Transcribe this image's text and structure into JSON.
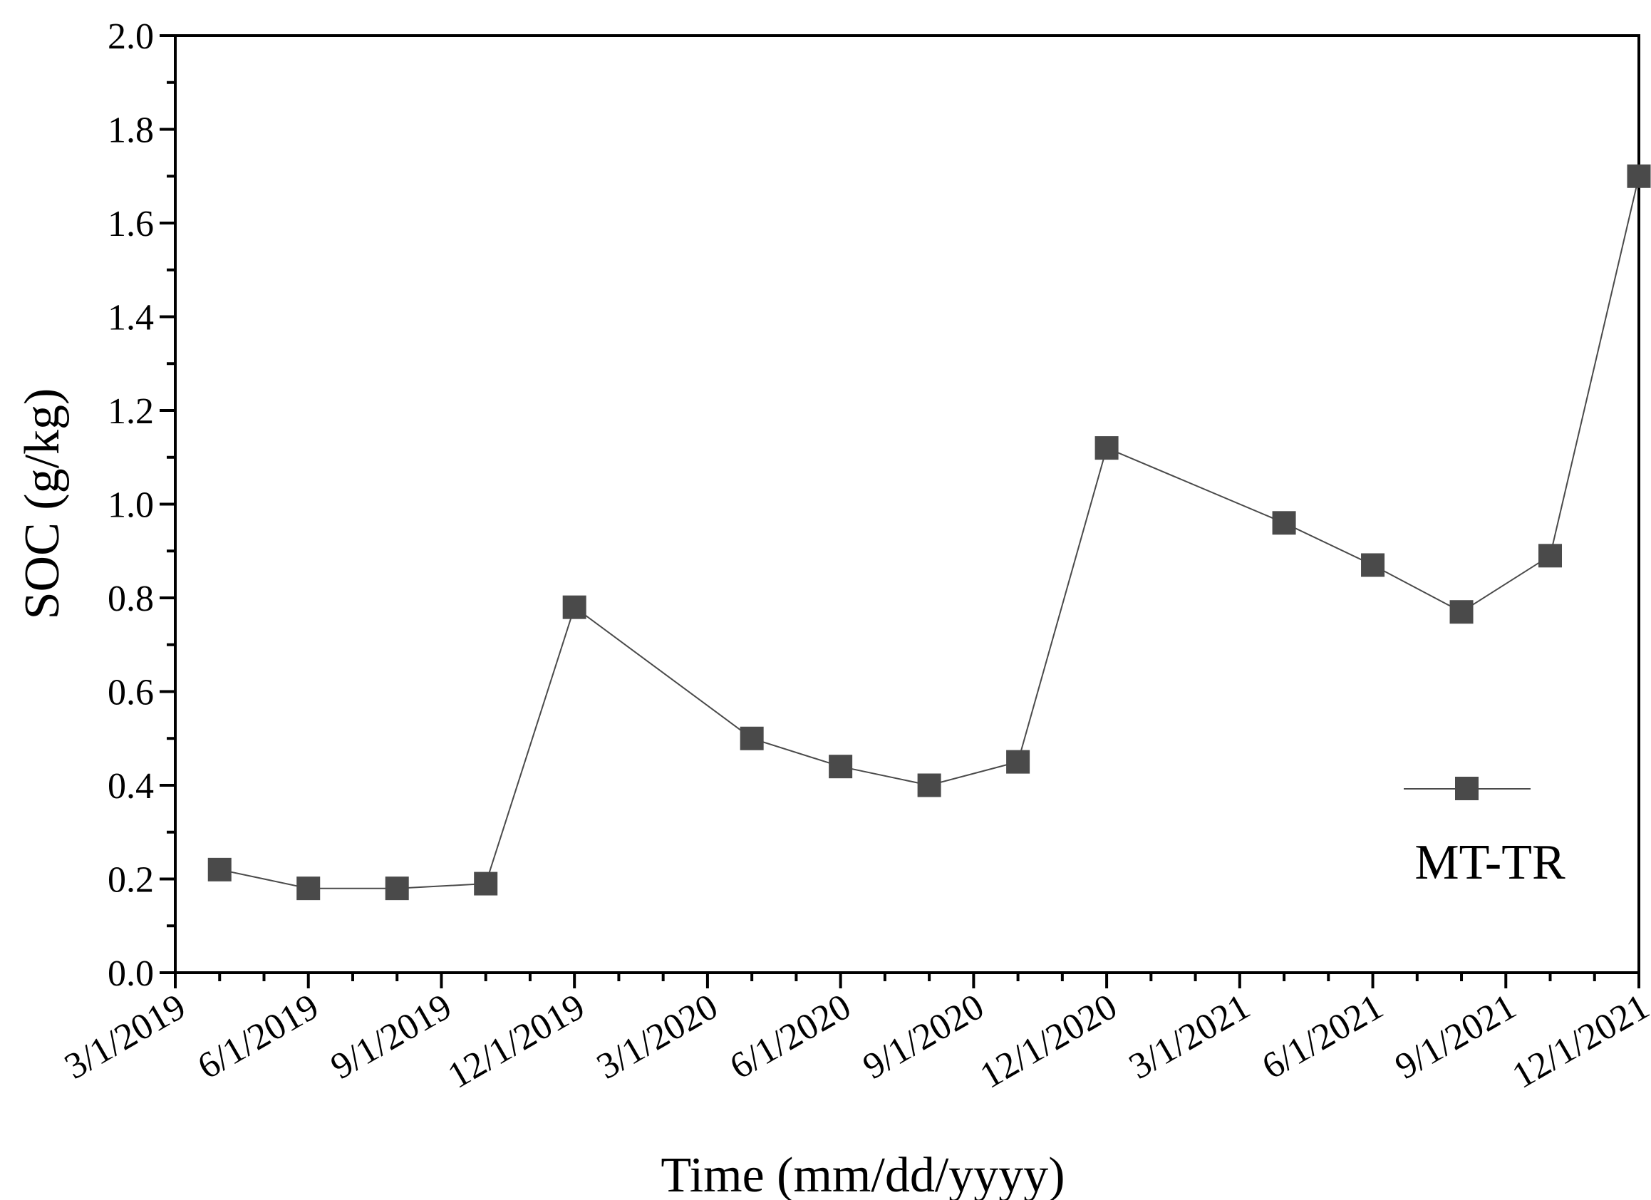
{
  "chart_data": {
    "type": "line",
    "title": "",
    "xlabel": "Time (mm/dd/yyyy)",
    "ylabel": "SOC (g/kg)",
    "ylim": [
      0,
      2.0
    ],
    "yticks": [
      "0.0",
      "0.2",
      "0.4",
      "0.6",
      "0.8",
      "1.0",
      "1.2",
      "1.4",
      "1.6",
      "1.8",
      "2.0"
    ],
    "xticks": [
      "3/1/2019",
      "6/1/2019",
      "9/1/2019",
      "12/1/2019",
      "3/1/2020",
      "6/1/2020",
      "9/1/2020",
      "12/1/2020",
      "3/1/2021",
      "6/1/2021",
      "9/1/2021",
      "12/1/2021"
    ],
    "x_range_months": [
      0,
      33
    ],
    "grid": false,
    "legend_position": "bottom-right",
    "series": [
      {
        "name": "MT-TR",
        "color": "#4a4a4a",
        "marker": "square",
        "x_months": [
          1,
          3,
          5,
          7,
          9,
          13,
          15,
          17,
          19,
          21,
          25,
          27,
          29,
          31,
          33
        ],
        "values": [
          0.22,
          0.18,
          0.18,
          0.19,
          0.78,
          0.5,
          0.44,
          0.4,
          0.45,
          1.12,
          0.96,
          0.87,
          0.77,
          0.89,
          1.7
        ]
      }
    ]
  }
}
